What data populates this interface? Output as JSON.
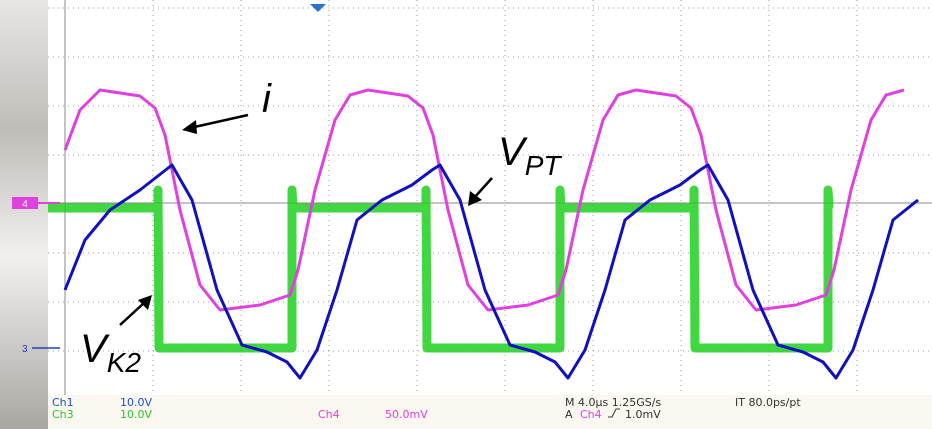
{
  "annotations": {
    "current": "i",
    "v_pt": {
      "main": "V",
      "sub": "PT"
    },
    "v_k2": {
      "main": "V",
      "sub": "K2"
    }
  },
  "markers": {
    "ch4": "4",
    "ch3": "3"
  },
  "status": {
    "ch1": "Ch1",
    "ch1_scale": "10.0V",
    "ch3": "Ch3",
    "ch3_scale": "10.0V",
    "ch4": "Ch4",
    "ch4_scale": "50.0mV",
    "timebase": "M 4.0µs 1.25GS/s",
    "interp": "IT 80.0ps/pt",
    "trig": "A",
    "trig_source": "Ch4",
    "trig_level": "1.0mV"
  }
}
